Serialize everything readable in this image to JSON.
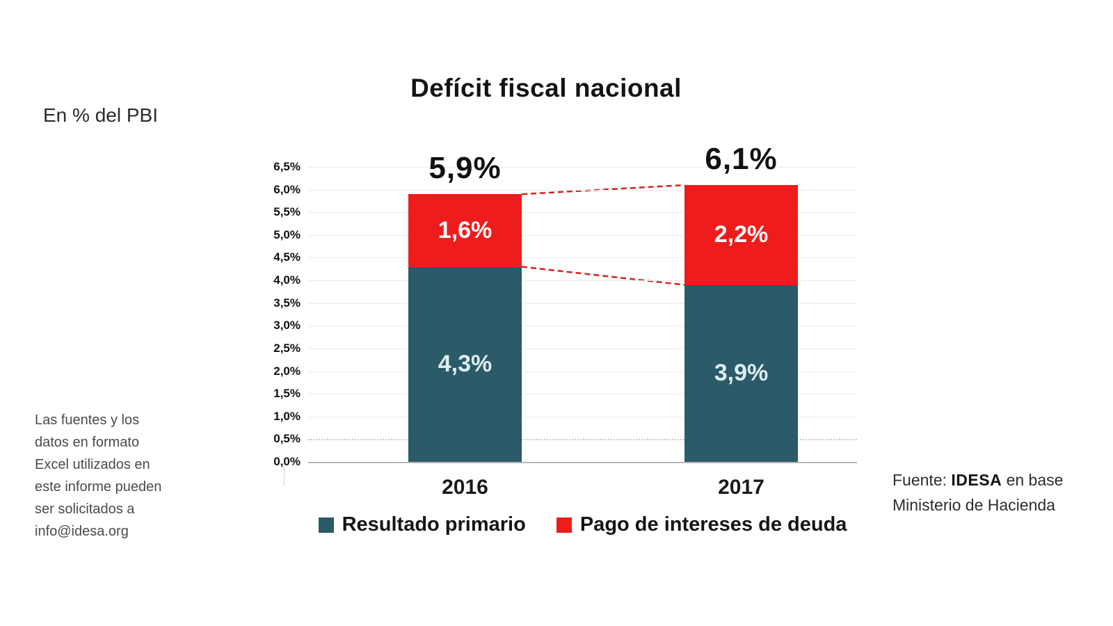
{
  "title": "Defícit fiscal nacional",
  "unit_label": "En % del PBI",
  "side_note": "Las fuentes y los\ndatos en formato\nExcel utilizados en\neste informe pueden\nser solicitados a\ninfo@idesa.org",
  "source": {
    "prefix": "Fuente: ",
    "org": "IDESA",
    "suffix": " en base Ministerio de Hacienda"
  },
  "colors": {
    "primary": "#2b5a68",
    "interest": "#ee1c1c",
    "connector": "#d42020",
    "primary_label_text": "#ddeef4",
    "interest_label_text": "#ffffff",
    "grid": "#ebebeb",
    "text": "#141414"
  },
  "chart_data": {
    "type": "bar",
    "stacked": true,
    "title": "Defícit fiscal nacional",
    "unit": "En % del PBI",
    "categories": [
      "2016",
      "2017"
    ],
    "series": [
      {
        "name": "Resultado primario",
        "color": "#2b5a68",
        "values": [
          4.3,
          3.9
        ],
        "labels": [
          "4,3%",
          "3,9%"
        ]
      },
      {
        "name": "Pago de intereses de deuda",
        "color": "#ee1c1c",
        "values": [
          1.6,
          2.2
        ],
        "labels": [
          "1,6%",
          "2,2%"
        ]
      }
    ],
    "totals": [
      5.9,
      6.1
    ],
    "total_labels": [
      "5,9%",
      "6,1%"
    ],
    "ylim": [
      0,
      6.5
    ],
    "ytick_step": 0.5,
    "yticks": [
      "0,0%",
      "0,5%",
      "1,0%",
      "1,5%",
      "2,0%",
      "2,5%",
      "3,0%",
      "3,5%",
      "4,0%",
      "4,5%",
      "5,0%",
      "5,5%",
      "6,0%",
      "6,5%"
    ],
    "grid": true,
    "legend_position": "bottom",
    "connectors": [
      {
        "from": "2016-total-top",
        "to": "2017-total-top",
        "style": "dashed-red"
      },
      {
        "from": "2016-primary-top",
        "to": "2017-primary-top",
        "style": "dashed-red"
      }
    ]
  },
  "legend": {
    "items": [
      {
        "label": "Resultado primario",
        "color": "#2b5a68"
      },
      {
        "label": "Pago de intereses de deuda",
        "color": "#ee1c1c"
      }
    ]
  }
}
